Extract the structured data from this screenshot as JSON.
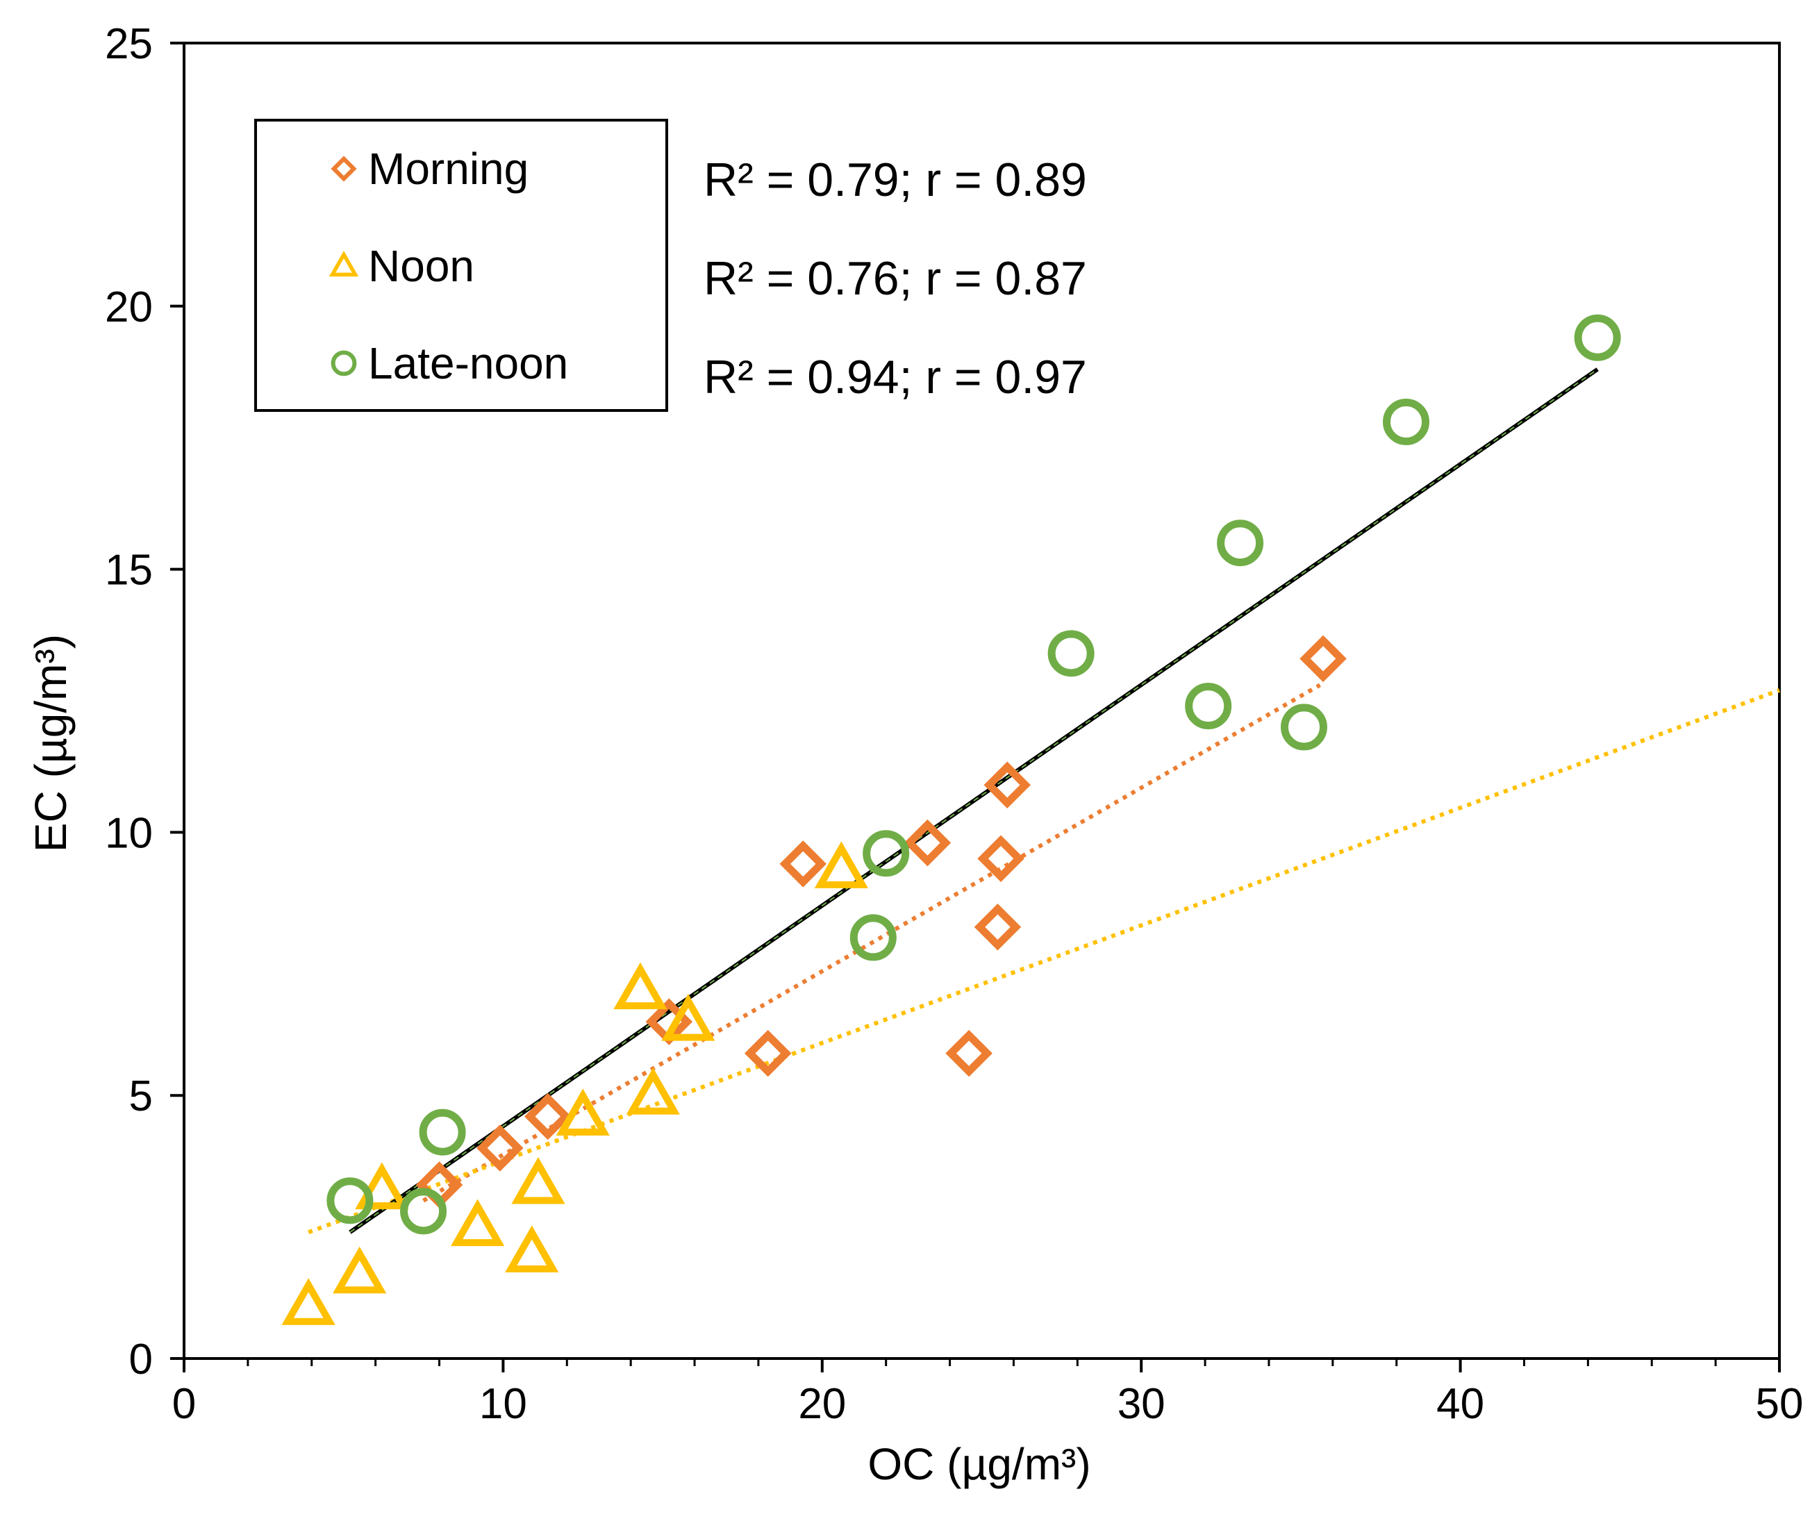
{
  "chart_data": {
    "type": "scatter",
    "title": "",
    "xlabel": "OC (µg/m³)",
    "ylabel": "EC (µg/m³)",
    "xlim": [
      0,
      50
    ],
    "ylim": [
      0,
      25
    ],
    "xticks": [
      0,
      10,
      20,
      30,
      40,
      50
    ],
    "yticks": [
      0,
      5,
      10,
      15,
      20,
      25
    ],
    "xtick_labels": [
      "0",
      "10",
      "20",
      "30",
      "40",
      "50"
    ],
    "ytick_labels": [
      "0",
      "5",
      "10",
      "15",
      "20",
      "25"
    ],
    "grid": false,
    "legend_position": "top-left",
    "series": [
      {
        "name": "Morning",
        "marker": "diamond",
        "color": "#ED7D31",
        "points": [
          [
            8.0,
            3.3
          ],
          [
            9.9,
            4.0
          ],
          [
            11.4,
            4.6
          ],
          [
            15.2,
            6.4
          ],
          [
            18.3,
            5.8
          ],
          [
            19.4,
            9.4
          ],
          [
            23.3,
            9.8
          ],
          [
            24.6,
            5.8
          ],
          [
            25.5,
            8.2
          ],
          [
            25.6,
            9.5
          ],
          [
            25.8,
            10.9
          ],
          [
            35.7,
            13.3
          ]
        ],
        "trendline": {
          "x": [
            7.5,
            35.6
          ],
          "y": [
            3.0,
            12.8
          ],
          "style": "dotted"
        }
      },
      {
        "name": "Noon",
        "marker": "triangle",
        "color": "#FFC000",
        "points": [
          [
            3.9,
            1.0
          ],
          [
            5.5,
            1.6
          ],
          [
            6.2,
            3.2
          ],
          [
            9.2,
            2.5
          ],
          [
            10.9,
            2.0
          ],
          [
            11.1,
            3.3
          ],
          [
            12.5,
            4.6
          ],
          [
            14.3,
            7.0
          ],
          [
            14.7,
            5.0
          ],
          [
            15.8,
            6.4
          ],
          [
            20.6,
            9.3
          ]
        ],
        "trendline": {
          "x": [
            3.9,
            50.0
          ],
          "y": [
            2.4,
            12.7
          ],
          "style": "dotted"
        }
      },
      {
        "name": "Late-noon",
        "marker": "circle",
        "color": "#70AD47",
        "points": [
          [
            5.2,
            3.0
          ],
          [
            7.5,
            2.8
          ],
          [
            8.1,
            4.3
          ],
          [
            21.6,
            8.0
          ],
          [
            22.0,
            9.6
          ],
          [
            27.8,
            13.4
          ],
          [
            32.1,
            12.4
          ],
          [
            33.1,
            15.5
          ],
          [
            35.1,
            12.0
          ],
          [
            38.3,
            17.8
          ],
          [
            44.3,
            19.4
          ]
        ],
        "trendline": {
          "x": [
            5.2,
            44.3
          ],
          "y": [
            2.4,
            18.8
          ],
          "style": "solid"
        }
      }
    ],
    "annotations": [
      {
        "text": "R² = 0.79; r = 0.89",
        "series": "Morning"
      },
      {
        "text": "R² = 0.76; r = 0.87",
        "series": "Noon"
      },
      {
        "text": "R² = 0.94; r = 0.97",
        "series": "Late-noon"
      }
    ]
  }
}
